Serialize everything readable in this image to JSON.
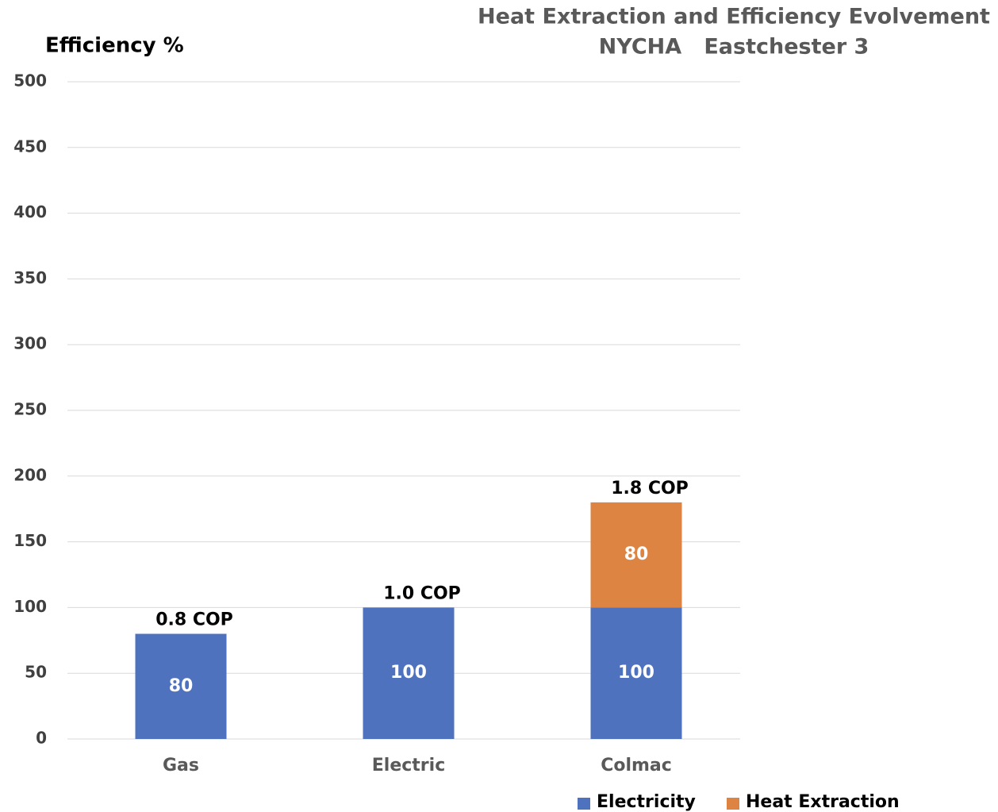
{
  "chart_data": {
    "type": "stacked_bar",
    "title": [
      "Heat Extraction and Efficiency Evolvement",
      "NYCHA   Eastchester 3"
    ],
    "y_label": "Efficiency %",
    "categories": [
      "Gas",
      "Electric",
      "Colmac"
    ],
    "series": [
      {
        "name": "Electricity",
        "color": "#4f72be",
        "values": [
          80,
          100,
          100
        ]
      },
      {
        "name": "Heat Extraction",
        "color": "#dd8443",
        "values": [
          null,
          null,
          80
        ]
      }
    ],
    "annotations": [
      "0.8 COP",
      "1.0 COP",
      "1.8 COP"
    ],
    "ylim": [
      0,
      500
    ],
    "yticks": [
      0,
      50,
      100,
      150,
      200,
      250,
      300,
      350,
      400,
      450,
      500
    ],
    "grid": true,
    "legend": "bottom"
  }
}
